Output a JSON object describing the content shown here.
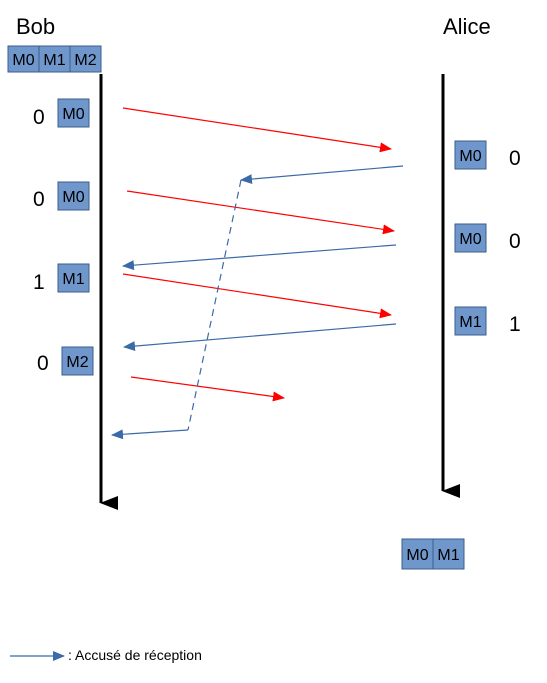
{
  "bob": {
    "name": "Bob",
    "buffer": [
      "M0",
      "M1",
      "M2"
    ],
    "sends": [
      {
        "seq": "0",
        "msg": "M0"
      },
      {
        "seq": "0",
        "msg": "M0"
      },
      {
        "seq": "1",
        "msg": "M1"
      },
      {
        "seq": "0",
        "msg": "M2"
      }
    ]
  },
  "alice": {
    "name": "Alice",
    "receives": [
      {
        "seq": "0",
        "msg": "M0"
      },
      {
        "seq": "0",
        "msg": "M0"
      },
      {
        "seq": "1",
        "msg": "M1"
      }
    ],
    "delivered": [
      "M0",
      "M1"
    ]
  },
  "legend": {
    "ack_label": ": Accusé de réception"
  },
  "colors": {
    "message_arrow": "#ff0000",
    "ack_arrow": "#3b6aa8",
    "box_fill": "#6f97cc",
    "box_stroke": "#3b5d8a",
    "timeline": "#000000"
  }
}
